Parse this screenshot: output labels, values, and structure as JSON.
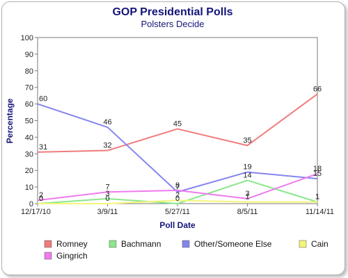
{
  "chart_data": {
    "type": "line",
    "title": "GOP Presidential Polls",
    "subtitle": "Polsters Decide",
    "xlabel": "Poll Date",
    "ylabel": "Percentage",
    "categories": [
      "12/17/10",
      "3/9/11",
      "5/27/11",
      "8/5/11",
      "11/14/11"
    ],
    "ylim": [
      0,
      100
    ],
    "yticks": [
      0,
      10,
      20,
      30,
      40,
      50,
      60,
      70,
      80,
      90,
      100
    ],
    "grid": false,
    "legend_position": "bottom",
    "series": [
      {
        "name": "Romney",
        "color": "#f07b7b",
        "values": [
          31,
          32,
          45,
          35,
          66
        ]
      },
      {
        "name": "Bachmann",
        "color": "#8ae88a",
        "values": [
          0,
          3,
          0,
          14,
          1
        ]
      },
      {
        "name": "Other/Someone Else",
        "color": "#8585f0",
        "values": [
          60,
          46,
          7,
          19,
          15
        ]
      },
      {
        "name": "Cain",
        "color": "#f5f57a",
        "values": [
          0,
          0,
          2,
          1,
          1
        ]
      },
      {
        "name": "Gingrich",
        "color": "#ee7bee",
        "values": [
          2,
          7,
          8,
          3,
          18
        ]
      }
    ]
  }
}
